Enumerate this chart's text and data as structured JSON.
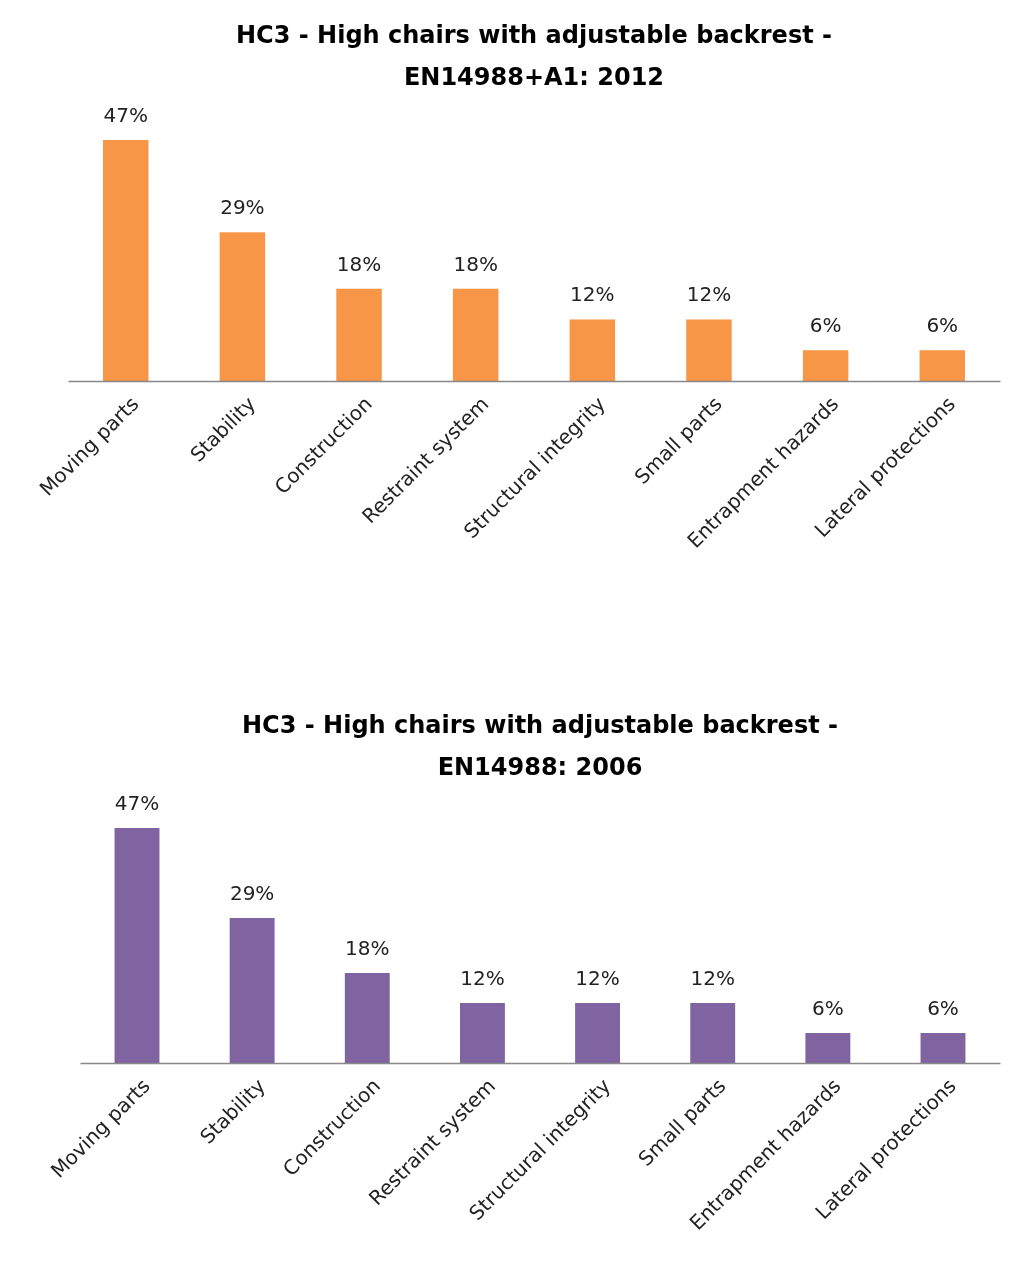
{
  "chart_data": [
    {
      "type": "bar",
      "title": "HC3 - High chairs with adjustable backrest -\nEN14988+A1: 2012",
      "categories": [
        "Moving parts",
        "Stability",
        "Construction",
        "Restraint system",
        "Structural integrity",
        "Small parts",
        "Entrapment hazards",
        "Lateral protections"
      ],
      "values": [
        47,
        29,
        18,
        18,
        12,
        12,
        6,
        6
      ],
      "value_labels": [
        "47%",
        "29%",
        "18%",
        "18%",
        "12%",
        "12%",
        "6%",
        "6%"
      ],
      "color": "#f79646",
      "grid": false
    },
    {
      "type": "bar",
      "title": "HC3 - High chairs with adjustable backrest -\nEN14988: 2006",
      "categories": [
        "Moving parts",
        "Stability",
        "Construction",
        "Restraint system",
        "Structural integrity",
        "Small parts",
        "Entrapment hazards",
        "Lateral protections"
      ],
      "values": [
        47,
        29,
        18,
        12,
        12,
        12,
        6,
        6
      ],
      "value_labels": [
        "47%",
        "29%",
        "18%",
        "12%",
        "12%",
        "12%",
        "6%",
        "6%"
      ],
      "color": "#8064a2",
      "grid": false
    }
  ]
}
